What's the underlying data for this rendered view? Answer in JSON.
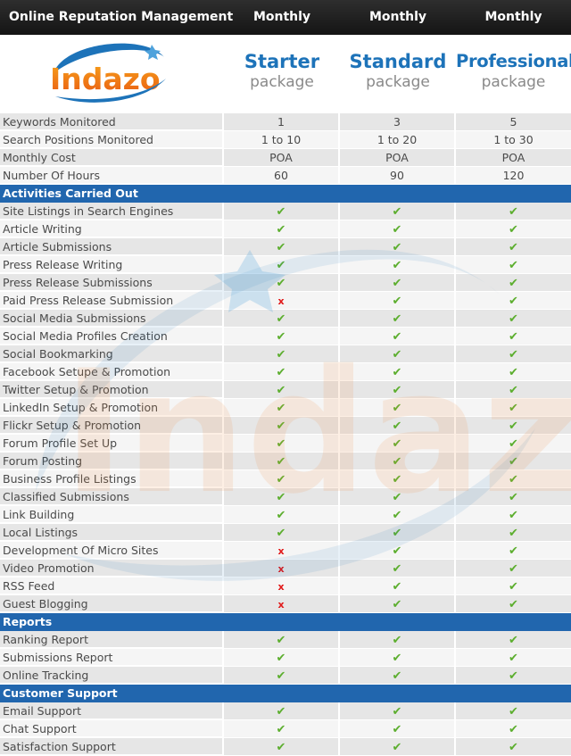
{
  "header": {
    "title": "Online Reputation Management",
    "columns": [
      "Monthly",
      "Monthly",
      "Monthly"
    ]
  },
  "logo": {
    "text": "Indazo",
    "icon": "indazo-logo-icon"
  },
  "packages": [
    {
      "name": "Starter",
      "sub": "package"
    },
    {
      "name": "Standard",
      "sub": "package"
    },
    {
      "name": "Professional",
      "sub": "package"
    }
  ],
  "stats": [
    {
      "label": "Keywords Monitored",
      "values": [
        "1",
        "3",
        "5"
      ]
    },
    {
      "label": "Search Positions Monitored",
      "values": [
        "1 to 10",
        "1 to 20",
        "1 to 30"
      ]
    },
    {
      "label": "Monthly Cost",
      "values": [
        "POA",
        "POA",
        "POA"
      ]
    },
    {
      "label": "Number Of Hours",
      "values": [
        "60",
        "90",
        "120"
      ]
    }
  ],
  "symbols": {
    "yes": "✔",
    "no": "x"
  },
  "colors": {
    "check": "#5cae2e",
    "cross": "#e11a1a",
    "section": "#2166ae",
    "accent": "#1d73b9"
  },
  "sections": [
    {
      "title": "Activities Carried Out",
      "rows": [
        {
          "label": "Site Listings in Search Engines",
          "values": [
            "yes",
            "yes",
            "yes"
          ]
        },
        {
          "label": "Article Writing",
          "values": [
            "yes",
            "yes",
            "yes"
          ]
        },
        {
          "label": "Article Submissions",
          "values": [
            "yes",
            "yes",
            "yes"
          ]
        },
        {
          "label": "Press Release Writing",
          "values": [
            "yes",
            "yes",
            "yes"
          ]
        },
        {
          "label": "Press Release Submissions",
          "values": [
            "yes",
            "yes",
            "yes"
          ]
        },
        {
          "label": "Paid Press Release Submission",
          "values": [
            "no",
            "yes",
            "yes"
          ]
        },
        {
          "label": "Social Media Submissions",
          "values": [
            "yes",
            "yes",
            "yes"
          ]
        },
        {
          "label": "Social Media Profiles Creation",
          "values": [
            "yes",
            "yes",
            "yes"
          ]
        },
        {
          "label": "Social Bookmarking",
          "values": [
            "yes",
            "yes",
            "yes"
          ]
        },
        {
          "label": "Facebook Setupe & Promotion",
          "values": [
            "yes",
            "yes",
            "yes"
          ]
        },
        {
          "label": "Twitter Setup & Promotion",
          "values": [
            "yes",
            "yes",
            "yes"
          ]
        },
        {
          "label": "LinkedIn Setup & Promotion",
          "values": [
            "yes",
            "yes",
            "yes"
          ]
        },
        {
          "label": "Flickr Setup & Promotion",
          "values": [
            "yes",
            "yes",
            "yes"
          ]
        },
        {
          "label": "Forum Profile Set Up",
          "values": [
            "yes",
            "yes",
            "yes"
          ]
        },
        {
          "label": "Forum Posting",
          "values": [
            "yes",
            "yes",
            "yes"
          ]
        },
        {
          "label": "Business Profile Listings",
          "values": [
            "yes",
            "yes",
            "yes"
          ]
        },
        {
          "label": "Classified Submissions",
          "values": [
            "yes",
            "yes",
            "yes"
          ]
        },
        {
          "label": "Link Building",
          "values": [
            "yes",
            "yes",
            "yes"
          ]
        },
        {
          "label": "Local Listings",
          "values": [
            "yes",
            "yes",
            "yes"
          ]
        },
        {
          "label": "Development Of Micro Sites",
          "values": [
            "no",
            "yes",
            "yes"
          ]
        },
        {
          "label": "Video Promotion",
          "values": [
            "no",
            "yes",
            "yes"
          ]
        },
        {
          "label": "RSS Feed",
          "values": [
            "no",
            "yes",
            "yes"
          ]
        },
        {
          "label": "Guest Blogging",
          "values": [
            "no",
            "yes",
            "yes"
          ]
        }
      ]
    },
    {
      "title": "Reports",
      "rows": [
        {
          "label": "Ranking Report",
          "values": [
            "yes",
            "yes",
            "yes"
          ]
        },
        {
          "label": "Submissions Report",
          "values": [
            "yes",
            "yes",
            "yes"
          ]
        },
        {
          "label": "Online Tracking",
          "values": [
            "yes",
            "yes",
            "yes"
          ]
        }
      ]
    },
    {
      "title": "Customer Support",
      "rows": [
        {
          "label": "Email Support",
          "values": [
            "yes",
            "yes",
            "yes"
          ]
        },
        {
          "label": "Chat Support",
          "values": [
            "yes",
            "yes",
            "yes"
          ]
        },
        {
          "label": "Satisfaction Support",
          "values": [
            "yes",
            "yes",
            "yes"
          ]
        }
      ]
    }
  ]
}
